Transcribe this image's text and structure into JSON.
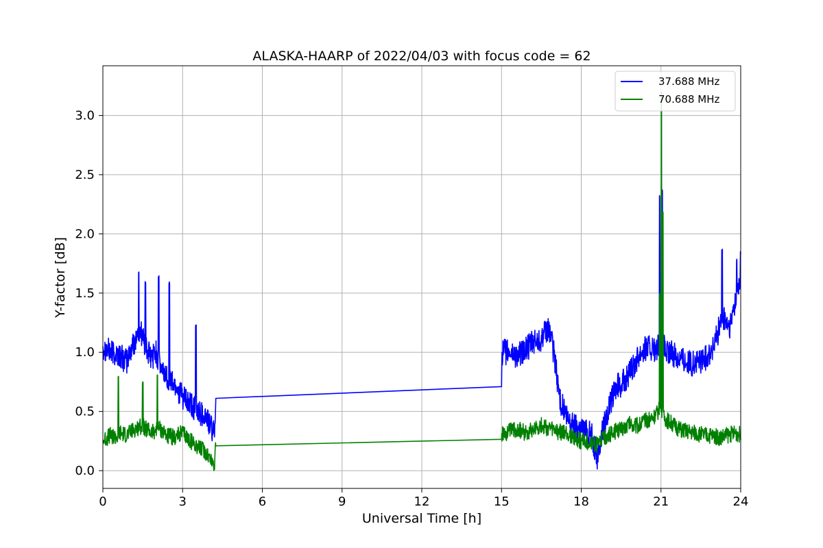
{
  "chart_data": {
    "type": "line",
    "title": "ALASKA-HAARP of 2022/04/03 with focus code = 62",
    "xlabel": "Universal Time [h]",
    "ylabel": "Y-factor [dB]",
    "xlim": [
      0,
      24
    ],
    "ylim": [
      -0.15,
      3.42
    ],
    "xticks": [
      0,
      3,
      6,
      9,
      12,
      15,
      18,
      21,
      24
    ],
    "xtick_labels": [
      "0",
      "3",
      "6",
      "9",
      "12",
      "15",
      "18",
      "21",
      "24"
    ],
    "yticks": [
      0.0,
      0.5,
      1.0,
      1.5,
      2.0,
      2.5,
      3.0
    ],
    "ytick_labels": [
      "0.0",
      "0.5",
      "1.0",
      "1.5",
      "2.0",
      "2.5",
      "3.0"
    ],
    "grid": true,
    "legend_position": "top-right",
    "series": [
      {
        "name": "37.688 MHz",
        "color": "#0000ff",
        "x": [
          0,
          0.3,
          0.6,
          0.9,
          1.2,
          1.4,
          1.6,
          1.8,
          2.0,
          2.2,
          2.5,
          2.8,
          3.0,
          3.3,
          3.6,
          3.9,
          4.1,
          4.2,
          4.25,
          15.0,
          15.02,
          15.3,
          15.6,
          15.9,
          16.2,
          16.5,
          16.8,
          17.0,
          17.2,
          17.5,
          17.8,
          18.1,
          18.4,
          18.6,
          18.8,
          19.0,
          19.3,
          19.6,
          19.9,
          20.2,
          20.5,
          20.8,
          21.0,
          21.2,
          21.5,
          21.8,
          22.1,
          22.4,
          22.7,
          23.0,
          23.3,
          23.6,
          23.8,
          24.0
        ],
        "y": [
          1.05,
          1.0,
          0.98,
          0.92,
          1.1,
          1.2,
          1.05,
          0.95,
          1.0,
          0.85,
          0.78,
          0.7,
          0.62,
          0.55,
          0.5,
          0.45,
          0.35,
          0.3,
          0.68,
          0.71,
          1.0,
          1.0,
          0.97,
          1.02,
          1.08,
          1.12,
          1.2,
          0.95,
          0.6,
          0.42,
          0.38,
          0.35,
          0.3,
          0.1,
          0.35,
          0.5,
          0.7,
          0.75,
          0.85,
          1.0,
          1.05,
          1.0,
          1.1,
          1.0,
          0.98,
          0.95,
          0.9,
          0.92,
          0.95,
          1.05,
          1.3,
          1.2,
          1.45,
          1.6
        ],
        "spikes": [
          [
            1.35,
            1.7
          ],
          [
            1.6,
            1.6
          ],
          [
            2.1,
            1.65
          ],
          [
            2.5,
            1.6
          ],
          [
            3.5,
            1.25
          ],
          [
            20.95,
            2.33
          ],
          [
            21.05,
            2.38
          ],
          [
            23.3,
            1.88
          ],
          [
            23.85,
            1.8
          ],
          [
            24.0,
            1.86
          ]
        ]
      },
      {
        "name": "70.688 MHz",
        "color": "#008000",
        "x": [
          0,
          0.3,
          0.55,
          0.6,
          0.9,
          1.2,
          1.5,
          1.8,
          2.1,
          2.4,
          2.7,
          3.0,
          3.3,
          3.6,
          3.9,
          4.1,
          4.2,
          4.25,
          15.0,
          15.02,
          15.3,
          15.6,
          15.9,
          16.2,
          16.5,
          16.8,
          17.1,
          17.4,
          17.7,
          18.0,
          18.3,
          18.6,
          18.9,
          19.2,
          19.5,
          19.8,
          20.1,
          20.4,
          20.7,
          20.9,
          21.0,
          21.1,
          21.4,
          21.7,
          22.0,
          22.3,
          22.6,
          22.9,
          23.2,
          23.5,
          23.8,
          24.0
        ],
        "y": [
          0.25,
          0.3,
          0.28,
          0.32,
          0.3,
          0.35,
          0.38,
          0.32,
          0.36,
          0.3,
          0.28,
          0.32,
          0.25,
          0.2,
          0.15,
          0.08,
          0.05,
          0.26,
          0.265,
          0.3,
          0.33,
          0.35,
          0.32,
          0.36,
          0.38,
          0.35,
          0.33,
          0.32,
          0.28,
          0.25,
          0.24,
          0.22,
          0.28,
          0.32,
          0.35,
          0.4,
          0.38,
          0.42,
          0.45,
          0.5,
          0.55,
          0.45,
          0.4,
          0.35,
          0.33,
          0.32,
          0.3,
          0.3,
          0.28,
          0.3,
          0.32,
          0.3
        ],
        "spikes": [
          [
            0.58,
            0.82
          ],
          [
            1.5,
            0.75
          ],
          [
            2.05,
            0.82
          ],
          [
            20.95,
            1.5
          ],
          [
            21.02,
            3.2
          ],
          [
            21.07,
            2.2
          ]
        ]
      }
    ]
  }
}
